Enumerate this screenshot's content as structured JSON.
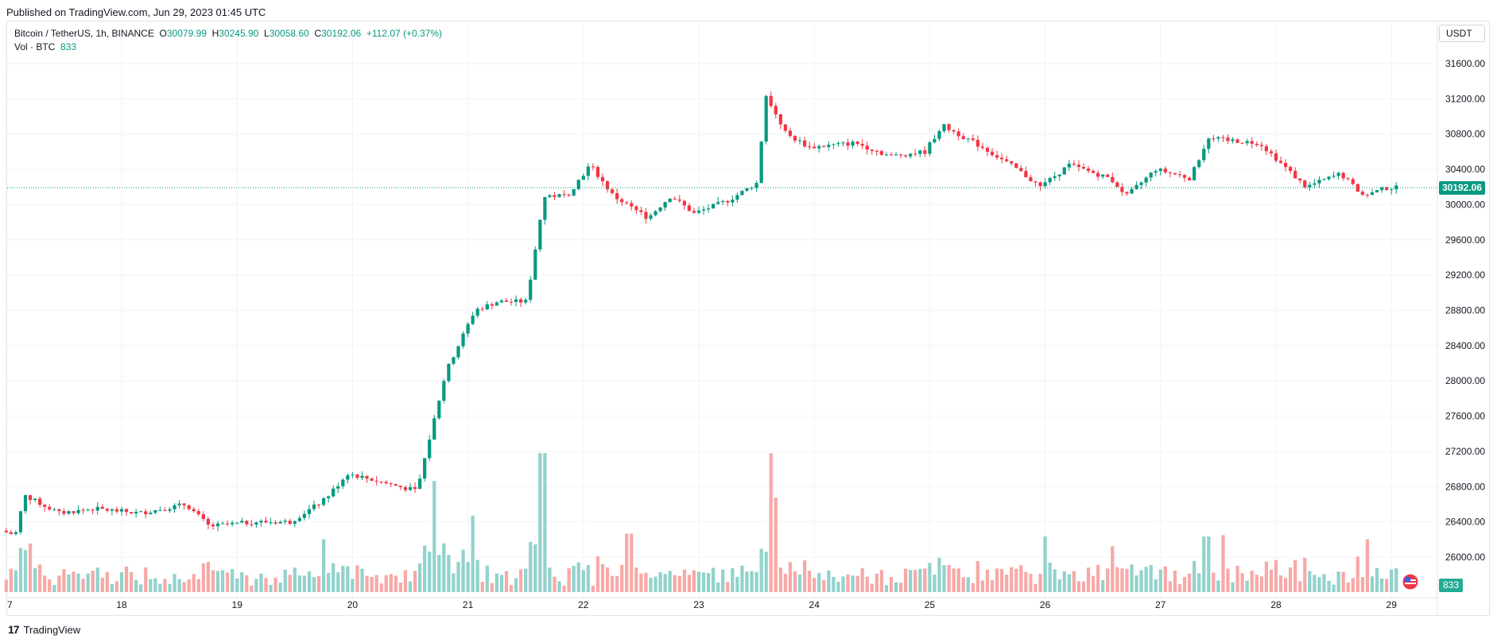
{
  "published": "Published on TradingView.com, Jun 29, 2023 01:45 UTC",
  "legend": {
    "symbol": "Bitcoin / TetherUS, 1h, BINANCE",
    "o_label": "O",
    "o_value": "30079.99",
    "h_label": "H",
    "h_value": "30245.90",
    "l_label": "L",
    "l_value": "30058.60",
    "c_label": "C",
    "c_value": "30192.06",
    "change": "+112.07 (+0.37%)",
    "vol_label": "Vol · BTC",
    "vol_value": "833"
  },
  "currency": "USDT",
  "last_price_tag": "30192.06",
  "volume_tag": "833",
  "footer": {
    "logo": "17",
    "brand": "TradingView"
  },
  "colors": {
    "up": "#089981",
    "down": "#f23645",
    "up_vol": "#92d2cc",
    "down_vol": "#f7a9a7",
    "grid": "#f0f3fa"
  },
  "chart_data": {
    "type": "candlestick",
    "y_axis": {
      "ticks": [
        "26000.00",
        "26400.00",
        "26800.00",
        "27200.00",
        "27600.00",
        "28000.00",
        "28400.00",
        "28800.00",
        "29200.00",
        "29600.00",
        "30000.00",
        "30400.00",
        "30800.00",
        "31200.00",
        "31600.00"
      ],
      "range": [
        25600,
        31900
      ]
    },
    "x_axis": {
      "ticks": [
        "7",
        "18",
        "19",
        "20",
        "21",
        "22",
        "23",
        "24",
        "25",
        "26",
        "27",
        "28",
        "29"
      ]
    },
    "last_price": 30192.06,
    "anchors": [
      {
        "day": 17.0,
        "price": 26300
      },
      {
        "day": 17.12,
        "price": 26250
      },
      {
        "day": 17.2,
        "price": 26700
      },
      {
        "day": 17.5,
        "price": 26500
      },
      {
        "day": 17.8,
        "price": 26550
      },
      {
        "day": 18.2,
        "price": 26500
      },
      {
        "day": 18.6,
        "price": 26600
      },
      {
        "day": 18.8,
        "price": 26350
      },
      {
        "day": 19.2,
        "price": 26400
      },
      {
        "day": 19.5,
        "price": 26400
      },
      {
        "day": 19.8,
        "price": 26650
      },
      {
        "day": 20.0,
        "price": 26950
      },
      {
        "day": 20.3,
        "price": 26850
      },
      {
        "day": 20.6,
        "price": 26750
      },
      {
        "day": 20.7,
        "price": 27300
      },
      {
        "day": 20.85,
        "price": 28100
      },
      {
        "day": 21.1,
        "price": 28800
      },
      {
        "day": 21.3,
        "price": 28900
      },
      {
        "day": 21.55,
        "price": 28900
      },
      {
        "day": 21.7,
        "price": 30100
      },
      {
        "day": 21.9,
        "price": 30100
      },
      {
        "day": 22.1,
        "price": 30450
      },
      {
        "day": 22.3,
        "price": 30100
      },
      {
        "day": 22.6,
        "price": 29850
      },
      {
        "day": 22.8,
        "price": 30100
      },
      {
        "day": 23.0,
        "price": 29900
      },
      {
        "day": 23.3,
        "price": 30050
      },
      {
        "day": 23.55,
        "price": 30250
      },
      {
        "day": 23.62,
        "price": 31250
      },
      {
        "day": 23.8,
        "price": 30800
      },
      {
        "day": 24.0,
        "price": 30650
      },
      {
        "day": 24.4,
        "price": 30700
      },
      {
        "day": 24.7,
        "price": 30550
      },
      {
        "day": 25.0,
        "price": 30600
      },
      {
        "day": 25.15,
        "price": 30900
      },
      {
        "day": 25.5,
        "price": 30650
      },
      {
        "day": 25.8,
        "price": 30400
      },
      {
        "day": 26.0,
        "price": 30200
      },
      {
        "day": 26.25,
        "price": 30450
      },
      {
        "day": 26.6,
        "price": 30300
      },
      {
        "day": 26.75,
        "price": 30100
      },
      {
        "day": 27.0,
        "price": 30400
      },
      {
        "day": 27.3,
        "price": 30300
      },
      {
        "day": 27.45,
        "price": 30750
      },
      {
        "day": 27.9,
        "price": 30700
      },
      {
        "day": 28.1,
        "price": 30450
      },
      {
        "day": 28.3,
        "price": 30200
      },
      {
        "day": 28.6,
        "price": 30350
      },
      {
        "day": 28.8,
        "price": 30100
      },
      {
        "day": 29.0,
        "price": 30190
      }
    ],
    "volume_spikes": [
      {
        "day": 17.2,
        "level": 0.35
      },
      {
        "day": 19.75,
        "level": 0.38
      },
      {
        "day": 20.7,
        "level": 0.8
      },
      {
        "day": 21.05,
        "level": 0.55
      },
      {
        "day": 21.65,
        "level": 1.0
      },
      {
        "day": 23.63,
        "level": 1.0
      },
      {
        "day": 23.68,
        "level": 0.68
      },
      {
        "day": 22.4,
        "level": 0.42
      },
      {
        "day": 26.0,
        "level": 0.4
      },
      {
        "day": 26.6,
        "level": 0.33
      },
      {
        "day": 27.4,
        "level": 0.4
      },
      {
        "day": 27.55,
        "level": 0.41
      },
      {
        "day": 28.8,
        "level": 0.38
      }
    ]
  }
}
